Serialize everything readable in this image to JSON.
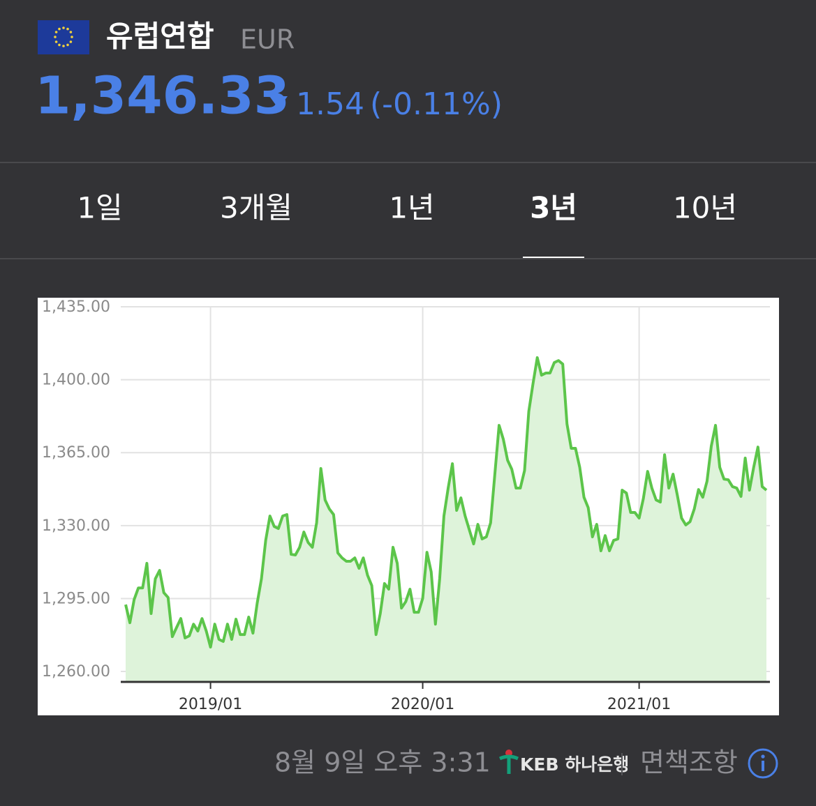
{
  "header": {
    "title": "유럽연합",
    "currency": "EUR",
    "price": "1,346.33",
    "change": "1.54",
    "change_percent": "(-0.11%)"
  },
  "tabs": [
    "1일",
    "3개월",
    "1년",
    "3년",
    "10년"
  ],
  "selected_tab": 3,
  "chart_data": {
    "type": "area",
    "color": "#5cc54a",
    "fill_color": "#def3da",
    "grid": true,
    "ylim": [
      1255,
      1435
    ],
    "yticks": [
      {
        "value": 1260,
        "label": "1,260.00"
      },
      {
        "value": 1295,
        "label": "1,295.00"
      },
      {
        "value": 1330,
        "label": "1,330.00"
      },
      {
        "value": 1365,
        "label": "1,365.00"
      },
      {
        "value": 1400,
        "label": "1,400.00"
      },
      {
        "value": 1435,
        "label": "1,435.00"
      }
    ],
    "categories": [
      null,
      null,
      null,
      null,
      null,
      null,
      null,
      null,
      null,
      null,
      null,
      null,
      null,
      null,
      null,
      null,
      null,
      null,
      null,
      null,
      "2019/01",
      null,
      null,
      null,
      null,
      null,
      null,
      null,
      null,
      null,
      null,
      null,
      null,
      null,
      null,
      null,
      null,
      null,
      null,
      null,
      null,
      null,
      null,
      null,
      null,
      null,
      null,
      null,
      null,
      null,
      null,
      null,
      null,
      null,
      null,
      null,
      null,
      null,
      null,
      null,
      null,
      null,
      null,
      null,
      null,
      null,
      null,
      null,
      null,
      null,
      "2020/01",
      null,
      null,
      null,
      null,
      null,
      null,
      null,
      null,
      null,
      null,
      null,
      null,
      null,
      null,
      null,
      null,
      null,
      null,
      null,
      null,
      null,
      null,
      null,
      null,
      null,
      null,
      null,
      null,
      null,
      null,
      null,
      null,
      null,
      null,
      null,
      null,
      null,
      null,
      null,
      null,
      null,
      null,
      null,
      null,
      null,
      null,
      null,
      null,
      null,
      null,
      "2021/01",
      null,
      null,
      null,
      null,
      null,
      null,
      null,
      null,
      null,
      null,
      null,
      null,
      null,
      null,
      null,
      null,
      null,
      null,
      null,
      null,
      null,
      null,
      null,
      null,
      null,
      null,
      null,
      null,
      null,
      null
    ],
    "values": [
      1292.1,
      1283.4,
      1294.5,
      1300.1,
      1300.1,
      1311.9,
      1287.8,
      1304.5,
      1308.5,
      1297.8,
      1295.5,
      1276.7,
      1281.1,
      1285.4,
      1276.1,
      1277.1,
      1282.7,
      1279.4,
      1285.4,
      1279.4,
      1271.7,
      1282.7,
      1275.4,
      1274.4,
      1282.7,
      1275.4,
      1285.1,
      1277.7,
      1277.7,
      1286.1,
      1278.4,
      1292.8,
      1304.5,
      1322.9,
      1334.6,
      1329.6,
      1328.6,
      1334.6,
      1335.3,
      1316.2,
      1315.9,
      1319.6,
      1326.9,
      1321.9,
      1319.6,
      1331.3,
      1357.4,
      1342.3,
      1338.0,
      1335.3,
      1316.9,
      1314.5,
      1312.9,
      1312.9,
      1314.5,
      1309.5,
      1314.5,
      1306.2,
      1301.2,
      1277.7,
      1287.8,
      1302.2,
      1299.5,
      1319.6,
      1311.9,
      1290.4,
      1293.5,
      1299.5,
      1288.4,
      1288.4,
      1295.1,
      1317.2,
      1307.8,
      1282.7,
      1304.5,
      1334.6,
      1348.0,
      1359.7,
      1337.3,
      1343.3,
      1334.6,
      1327.9,
      1321.2,
      1330.6,
      1323.6,
      1324.6,
      1331.3,
      1354.7,
      1378.1,
      1371.4,
      1361.4,
      1357.0,
      1348.0,
      1348.0,
      1356.4,
      1384.8,
      1398.2,
      1410.6,
      1402.2,
      1403.2,
      1403.2,
      1408.2,
      1409.2,
      1407.5,
      1378.8,
      1367.1,
      1367.1,
      1358.0,
      1343.6,
      1338.6,
      1324.6,
      1330.6,
      1317.9,
      1325.2,
      1317.9,
      1322.9,
      1323.6,
      1347.0,
      1345.6,
      1336.3,
      1336.3,
      1333.6,
      1343.0,
      1356.0,
      1348.0,
      1342.3,
      1341.3,
      1364.0,
      1348.0,
      1354.7,
      1344.6,
      1333.6,
      1330.3,
      1331.9,
      1338.0,
      1347.3,
      1343.6,
      1351.3,
      1368.1,
      1378.1,
      1358.0,
      1352.3,
      1352.0,
      1348.7,
      1348.0,
      1344.0,
      1362.4,
      1347.0,
      1358.0,
      1367.7,
      1348.7,
      1347.0
    ]
  },
  "footer": {
    "timestamp": "8월 9일 오후 3:31",
    "bank": "KEB 하나은행",
    "disclaimer": "면책조항"
  }
}
